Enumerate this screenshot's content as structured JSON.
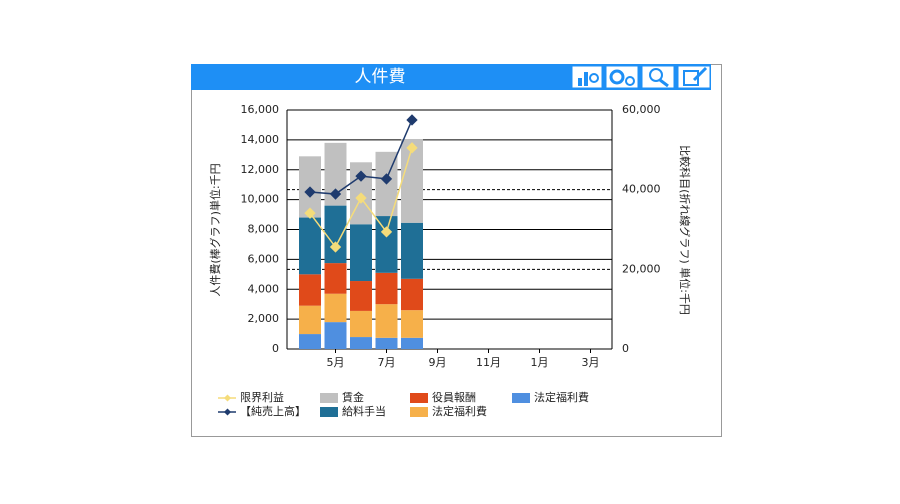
{
  "chart_data": {
    "type": "bar",
    "title": "人件費",
    "ylabel": "人件費(棒グラフ)単位:千円",
    "y2label": "比較科目(折れ線グラフ) 単位:千円",
    "categories": [
      null,
      "5月",
      null,
      "7月",
      null,
      "9月",
      null,
      "11月",
      null,
      "1月",
      null,
      "3月"
    ],
    "series": [
      {
        "name": "法定福利費",
        "color": "#4f8fe0",
        "values": [
          1000,
          1800,
          800,
          750,
          750,
          null,
          null,
          null,
          null,
          null,
          null,
          null
        ]
      },
      {
        "name": "法定福利費",
        "color": "#f6b04a",
        "values": [
          1900,
          1900,
          1750,
          2250,
          1850,
          null,
          null,
          null,
          null,
          null,
          null,
          null
        ]
      },
      {
        "name": "役員報酬",
        "color": "#e04a1a",
        "values": [
          2100,
          2050,
          2000,
          2100,
          2100,
          null,
          null,
          null,
          null,
          null,
          null,
          null
        ]
      },
      {
        "name": "給料手当",
        "color": "#1f6f96",
        "values": [
          3800,
          3850,
          3800,
          3800,
          3750,
          null,
          null,
          null,
          null,
          null,
          null,
          null
        ]
      },
      {
        "name": "賃金",
        "color": "#c0c0c0",
        "values": [
          4100,
          4200,
          4150,
          4300,
          5600,
          null,
          null,
          null,
          null,
          null,
          null,
          null
        ]
      },
      {
        "name": "限界利益",
        "color": "#f5dc7a",
        "type": "line",
        "axis": "y2",
        "values": [
          34100,
          25600,
          37900,
          29400,
          50500,
          null,
          null,
          null,
          null,
          null,
          null,
          null
        ]
      },
      {
        "name": "【純売上高】",
        "color": "#1f3b6e",
        "type": "line",
        "axis": "y2",
        "values": [
          39400,
          38900,
          43400,
          42700,
          57500,
          null,
          null,
          null,
          null,
          null,
          null,
          null
        ]
      }
    ],
    "stacked": true,
    "ylim": [
      0,
      16000
    ],
    "yticks": [
      0,
      {
        "value": 2000,
        "label": "2,000"
      },
      {
        "value": 4000,
        "label": "4,000"
      },
      {
        "value": 6000,
        "label": "6,000"
      },
      {
        "value": 8000,
        "label": "8,000"
      },
      {
        "value": 10000,
        "label": "10,000"
      },
      {
        "value": 12000,
        "label": "12,000"
      },
      {
        "value": 14000,
        "label": "14,000"
      },
      {
        "value": 16000,
        "label": "16,000"
      }
    ],
    "y2lim": [
      0,
      60000
    ],
    "y2ticks": [
      0,
      {
        "value": 20000,
        "label": "20,000"
      },
      {
        "value": 40000,
        "label": "40,000"
      },
      {
        "value": 60000,
        "label": "60,000"
      }
    ],
    "grid": true
  }
}
